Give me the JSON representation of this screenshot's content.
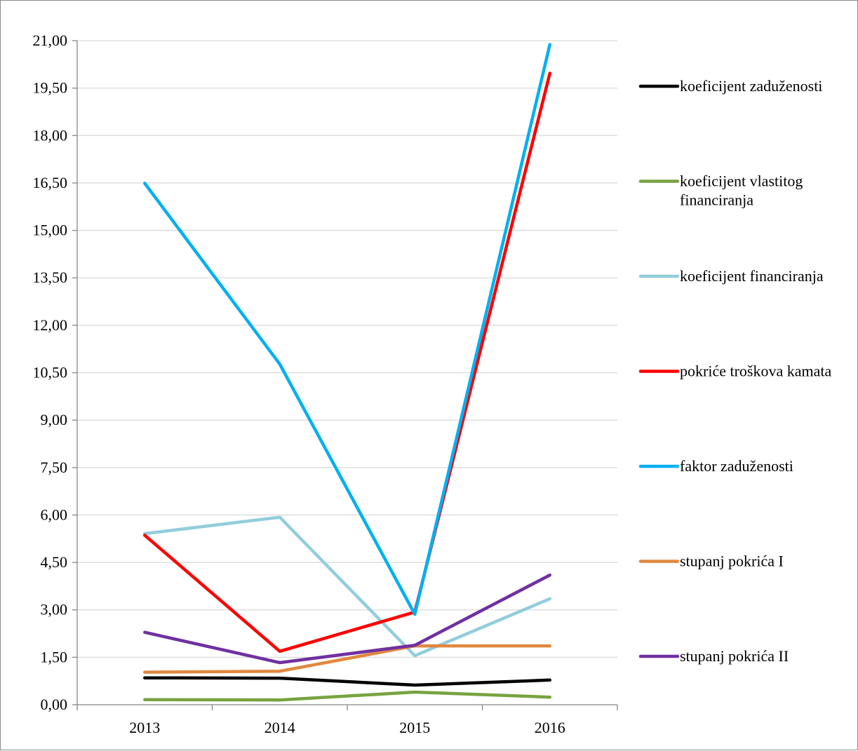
{
  "chart_data": {
    "type": "line",
    "title": "",
    "xlabel": "",
    "ylabel": "",
    "categories": [
      "2013",
      "2014",
      "2015",
      "2016"
    ],
    "ylim": [
      0,
      21
    ],
    "y_ticks": [
      "0,00",
      "1,50",
      "3,00",
      "4,50",
      "6,00",
      "7,50",
      "9,00",
      "10,50",
      "12,00",
      "13,50",
      "15,00",
      "16,50",
      "18,00",
      "19,50",
      "21,00"
    ],
    "grid": true,
    "legend_position": "right",
    "series": [
      {
        "name": "koeficijent zaduženosti",
        "color": "#000000",
        "values": [
          0.85,
          0.84,
          0.62,
          0.78
        ]
      },
      {
        "name": "koeficijent vlastitog financiranja",
        "color": "#77a340",
        "values": [
          0.16,
          0.15,
          0.4,
          0.24
        ]
      },
      {
        "name": "koeficijent financiranja",
        "color": "#92cddc",
        "values": [
          5.41,
          5.93,
          1.55,
          3.35
        ]
      },
      {
        "name": "pokriće troškova kamata",
        "color": "#ff0000",
        "values": [
          5.36,
          1.69,
          2.93,
          19.97
        ]
      },
      {
        "name": "faktor zaduženosti",
        "color": "#00b0f0",
        "values": [
          16.49,
          10.77,
          2.86,
          20.88
        ]
      },
      {
        "name": "stupanj pokrića I",
        "color": "#e0883f",
        "values": [
          1.03,
          1.06,
          1.86,
          1.86
        ]
      },
      {
        "name": "stupanj pokrića II",
        "color": "#7030a0",
        "values": [
          2.29,
          1.33,
          1.88,
          4.1
        ]
      }
    ]
  }
}
